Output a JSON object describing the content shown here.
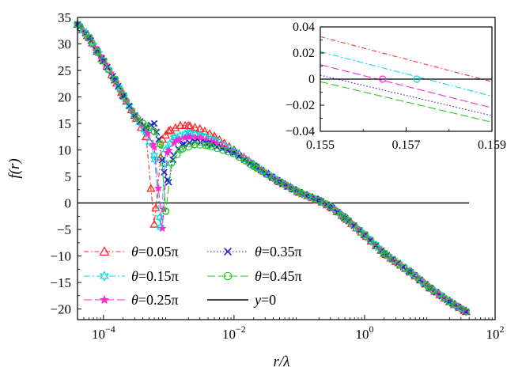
{
  "chart_data": {
    "type": "line",
    "xscale": "log",
    "xlabel": "r/λ",
    "ylabel": "f(r)",
    "xlim": [
      4e-05,
      100
    ],
    "ylim": [
      -22,
      35
    ],
    "x_ticks": [
      {
        "value": 0.0001,
        "base": "10",
        "exp": "−4"
      },
      {
        "value": 0.01,
        "base": "10",
        "exp": "−2"
      },
      {
        "value": 1,
        "base": "10",
        "exp": "0"
      },
      {
        "value": 100,
        "base": "10",
        "exp": "2"
      }
    ],
    "y_ticks": [
      {
        "value": 35,
        "label": "35"
      },
      {
        "value": 30,
        "label": "30"
      },
      {
        "value": 25,
        "label": "25"
      },
      {
        "value": 20,
        "label": "20"
      },
      {
        "value": 15,
        "label": "15"
      },
      {
        "value": 10,
        "label": "10"
      },
      {
        "value": 5,
        "label": "5"
      },
      {
        "value": 0,
        "label": "0"
      },
      {
        "value": -5,
        "label": "−5"
      },
      {
        "value": -10,
        "label": "−10"
      },
      {
        "value": -15,
        "label": "−15"
      },
      {
        "value": -20,
        "label": "−20"
      }
    ],
    "series": [
      {
        "name": "θ=0.05π",
        "theta_symbol": "θ",
        "theta_value": "=0.05π",
        "color": "#ff2a2a",
        "marker": "triangle",
        "dash": "6,3,1.5,3",
        "points": [
          [
            4e-05,
            33.7
          ],
          [
            6e-05,
            31.2
          ],
          [
            8e-05,
            28.6
          ],
          [
            0.0001,
            26.8
          ],
          [
            0.00015,
            23.2
          ],
          [
            0.0002,
            20.3
          ],
          [
            0.0003,
            16.5
          ],
          [
            0.00045,
            12.5
          ],
          [
            0.0006,
            -4.0
          ],
          [
            0.0008,
            12.0
          ],
          [
            0.001,
            13.6
          ],
          [
            0.0015,
            14.6
          ],
          [
            0.002,
            14.6
          ],
          [
            0.003,
            14.0
          ],
          [
            0.005,
            12.6
          ],
          [
            0.01,
            10.0
          ],
          [
            0.02,
            7.3
          ],
          [
            0.05,
            4.0
          ],
          [
            0.1,
            2.0
          ],
          [
            0.2,
            0.5
          ],
          [
            0.3,
            -0.7
          ],
          [
            0.5,
            -2.8
          ],
          [
            1,
            -6.0
          ],
          [
            2,
            -9.5
          ],
          [
            5,
            -13.0
          ],
          [
            10,
            -16.0
          ],
          [
            20,
            -18.6
          ],
          [
            36,
            -20.5
          ]
        ]
      },
      {
        "name": "θ=0.15π",
        "theta_symbol": "θ",
        "theta_value": "=0.15π",
        "color": "#00e0e0",
        "marker": "star6",
        "dash": "8,3,2,3",
        "points": [
          [
            4e-05,
            33.7
          ],
          [
            6e-05,
            31.2
          ],
          [
            8e-05,
            28.6
          ],
          [
            0.0001,
            26.8
          ],
          [
            0.00015,
            23.2
          ],
          [
            0.0002,
            20.3
          ],
          [
            0.0003,
            16.5
          ],
          [
            0.00045,
            13.3
          ],
          [
            0.0006,
            9.0
          ],
          [
            0.00075,
            -4.6
          ],
          [
            0.0009,
            10.0
          ],
          [
            0.0012,
            12.3
          ],
          [
            0.002,
            13.2
          ],
          [
            0.003,
            12.8
          ],
          [
            0.005,
            11.8
          ],
          [
            0.01,
            9.7
          ],
          [
            0.02,
            7.2
          ],
          [
            0.05,
            4.0
          ],
          [
            0.1,
            2.0
          ],
          [
            0.2,
            0.5
          ],
          [
            0.3,
            -0.7
          ],
          [
            0.5,
            -2.8
          ],
          [
            1,
            -6.0
          ],
          [
            2,
            -9.5
          ],
          [
            5,
            -13.0
          ],
          [
            10,
            -16.0
          ],
          [
            20,
            -18.6
          ],
          [
            36,
            -20.5
          ]
        ]
      },
      {
        "name": "θ=0.25π",
        "theta_symbol": "θ",
        "theta_value": "=0.25π",
        "color": "#ff2ad4",
        "marker": "star5",
        "dash": "10,4",
        "points": [
          [
            4e-05,
            33.7
          ],
          [
            6e-05,
            31.2
          ],
          [
            8e-05,
            28.6
          ],
          [
            0.0001,
            26.8
          ],
          [
            0.00015,
            23.2
          ],
          [
            0.0002,
            20.3
          ],
          [
            0.0003,
            16.5
          ],
          [
            0.00045,
            13.8
          ],
          [
            0.0006,
            10.5
          ],
          [
            0.0008,
            -4.8
          ],
          [
            0.00095,
            9.5
          ],
          [
            0.0013,
            11.8
          ],
          [
            0.002,
            12.5
          ],
          [
            0.003,
            12.3
          ],
          [
            0.005,
            11.4
          ],
          [
            0.01,
            9.5
          ],
          [
            0.02,
            7.1
          ],
          [
            0.05,
            4.0
          ],
          [
            0.1,
            2.0
          ],
          [
            0.2,
            0.5
          ],
          [
            0.3,
            -0.7
          ],
          [
            0.5,
            -2.8
          ],
          [
            1,
            -6.0
          ],
          [
            2,
            -9.5
          ],
          [
            5,
            -13.0
          ],
          [
            10,
            -16.0
          ],
          [
            20,
            -18.6
          ],
          [
            36,
            -20.5
          ]
        ]
      },
      {
        "name": "θ=0.35π",
        "theta_symbol": "θ",
        "theta_value": "=0.35π",
        "color": "#2020d0",
        "marker": "x",
        "dash": "1.5,2.5",
        "points": [
          [
            4e-05,
            33.7
          ],
          [
            6e-05,
            31.2
          ],
          [
            8e-05,
            28.6
          ],
          [
            0.0001,
            26.8
          ],
          [
            0.00015,
            23.2
          ],
          [
            0.0002,
            20.3
          ],
          [
            0.0003,
            16.5
          ],
          [
            0.00045,
            14.2
          ],
          [
            0.0006,
            15.0
          ],
          [
            0.0007,
            12.0
          ],
          [
            0.00085,
            5.8
          ],
          [
            0.001,
            3.9
          ],
          [
            0.0012,
            9.0
          ],
          [
            0.0016,
            11.0
          ],
          [
            0.0025,
            11.6
          ],
          [
            0.004,
            11.2
          ],
          [
            0.01,
            9.4
          ],
          [
            0.02,
            7.0
          ],
          [
            0.05,
            4.0
          ],
          [
            0.1,
            2.0
          ],
          [
            0.2,
            0.5
          ],
          [
            0.3,
            -0.7
          ],
          [
            0.5,
            -2.8
          ],
          [
            1,
            -6.0
          ],
          [
            2,
            -9.5
          ],
          [
            5,
            -13.0
          ],
          [
            10,
            -16.0
          ],
          [
            20,
            -18.6
          ],
          [
            36,
            -20.5
          ]
        ]
      },
      {
        "name": "θ=0.45π",
        "theta_symbol": "θ",
        "theta_value": "=0.45π",
        "color": "#22cc22",
        "marker": "circle",
        "dash": "10,4",
        "points": [
          [
            4e-05,
            33.7
          ],
          [
            6e-05,
            31.2
          ],
          [
            8e-05,
            28.6
          ],
          [
            0.0001,
            26.8
          ],
          [
            0.00015,
            23.2
          ],
          [
            0.0002,
            20.3
          ],
          [
            0.0003,
            16.5
          ],
          [
            0.00045,
            14.5
          ],
          [
            0.0006,
            13.5
          ],
          [
            0.00075,
            11.0
          ],
          [
            0.0009,
            -1.6
          ],
          [
            0.0011,
            7.5
          ],
          [
            0.0015,
            10.0
          ],
          [
            0.0025,
            11.0
          ],
          [
            0.004,
            10.8
          ],
          [
            0.01,
            9.3
          ],
          [
            0.02,
            6.9
          ],
          [
            0.05,
            4.0
          ],
          [
            0.1,
            2.0
          ],
          [
            0.2,
            0.5
          ],
          [
            0.3,
            -0.7
          ],
          [
            0.5,
            -2.8
          ],
          [
            1,
            -6.0
          ],
          [
            2,
            -9.5
          ],
          [
            5,
            -13.0
          ],
          [
            10,
            -16.0
          ],
          [
            20,
            -18.6
          ],
          [
            36,
            -20.5
          ]
        ]
      }
    ],
    "zero_line": {
      "name": "y=0",
      "prefix": "y",
      "suffix": "=0",
      "color": "#000000",
      "x_range": [
        4e-05,
        40
      ]
    },
    "inset": {
      "xlim": [
        0.155,
        0.159
      ],
      "ylim": [
        -0.04,
        0.04
      ],
      "x_ticks": [
        {
          "value": 0.155,
          "label": "0.155"
        },
        {
          "value": 0.157,
          "label": "0.157"
        },
        {
          "value": 0.159,
          "label": "0.159"
        }
      ],
      "y_ticks": [
        {
          "value": 0.04,
          "label": "0.04"
        },
        {
          "value": 0.02,
          "label": "0.02"
        },
        {
          "value": 0,
          "label": "0"
        },
        {
          "value": -0.02,
          "label": "−0.02"
        },
        {
          "value": -0.04,
          "label": "−0.04"
        }
      ],
      "lines": [
        {
          "color": "#ff2a2a",
          "dash": "6,3,1.5,3",
          "y_start": 0.0325,
          "y_end": -0.002
        },
        {
          "color": "#00e0e0",
          "dash": "8,3,2,3",
          "y_start": 0.021,
          "y_end": -0.013
        },
        {
          "color": "#ff2ad4",
          "dash": "10,4",
          "y_start": 0.011,
          "y_end": -0.022
        },
        {
          "color": "#2020d0",
          "dash": "1.5,2.5",
          "y_start": 0.003,
          "y_end": -0.028
        },
        {
          "color": "#22cc22",
          "dash": "10,4",
          "y_start": -0.002,
          "y_end": -0.033
        }
      ],
      "zero_crossings": [
        {
          "x": 0.15645,
          "color": "#ff2ad4"
        },
        {
          "x": 0.15725,
          "color": "#00e0e0"
        }
      ]
    }
  }
}
